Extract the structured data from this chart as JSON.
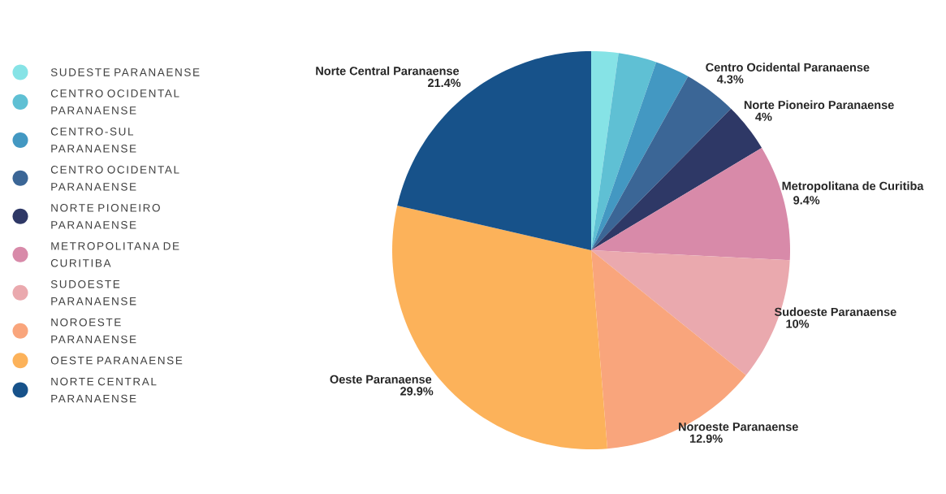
{
  "chart_data": {
    "type": "pie",
    "legend": "left",
    "categories": [
      "SUDESTE PARANAENSE",
      "CENTRO OCIDENTAL PARANAENSE",
      "CENTRO-SUL PARANAENSE",
      "CENTRO OCIDENTAL PARANAENSE",
      "NORTE PIONEIRO PARANAENSE",
      "METROPOLITANA DE CURITIBA",
      "SUDOESTE PARANAENSE",
      "NOROESTE PARANAENSE",
      "OESTE PARANAENSE",
      "NORTE CENTRAL PARANAENSE"
    ],
    "values": [
      2.2,
      3.1,
      2.8,
      4.3,
      4,
      9.4,
      10,
      12.9,
      29.9,
      21.4
    ],
    "colors": [
      "#86e3e6",
      "#5fc0d4",
      "#4398c2",
      "#3b6696",
      "#2e3866",
      "#d88aa9",
      "#eaa9ae",
      "#f9a57c",
      "#fcb25a",
      "#17528a"
    ],
    "value_labels": [
      null,
      null,
      null,
      "4.3%",
      "4%",
      "9.4%",
      "10%",
      "12.9%",
      "29.9%",
      "21.4%"
    ],
    "annotations": [
      "Centro Ocidental Paranaense",
      "Norte Pioneiro Paranaense",
      "Metropolitana de Curitiba",
      "Sudoeste Paranaense",
      "Noroeste Paranaense",
      "Oeste Paranaense",
      "Norte Central Paranaense"
    ]
  }
}
